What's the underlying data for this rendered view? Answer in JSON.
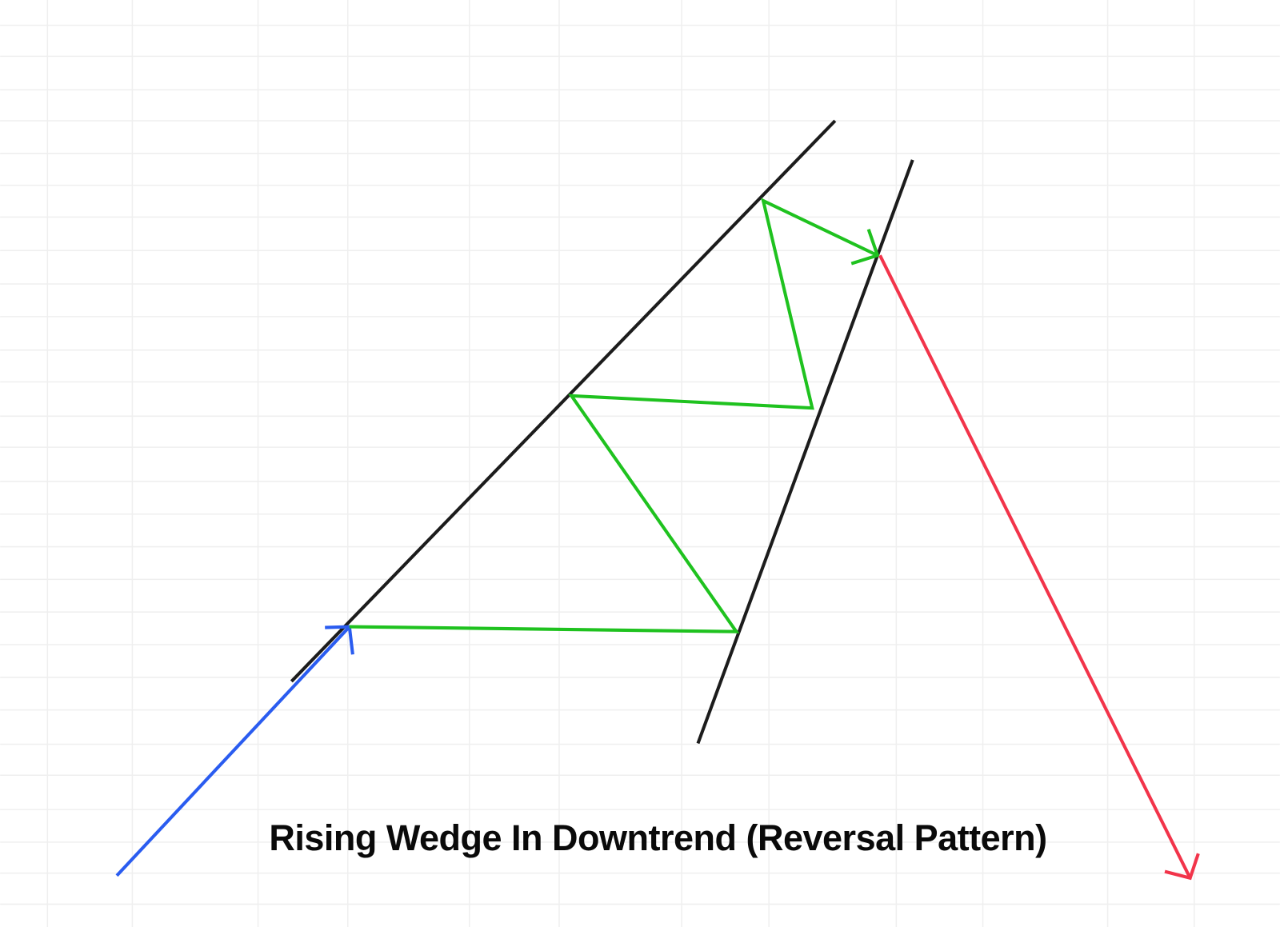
{
  "title": "Rising Wedge In Downtrend (Reversal Pattern)",
  "colors": {
    "trendlines": "#1c1c1c",
    "price_path": "#1fc21f",
    "prior_trend": "#2a5cf0",
    "breakdown": "#f2344a",
    "grid": "#efefef"
  }
}
